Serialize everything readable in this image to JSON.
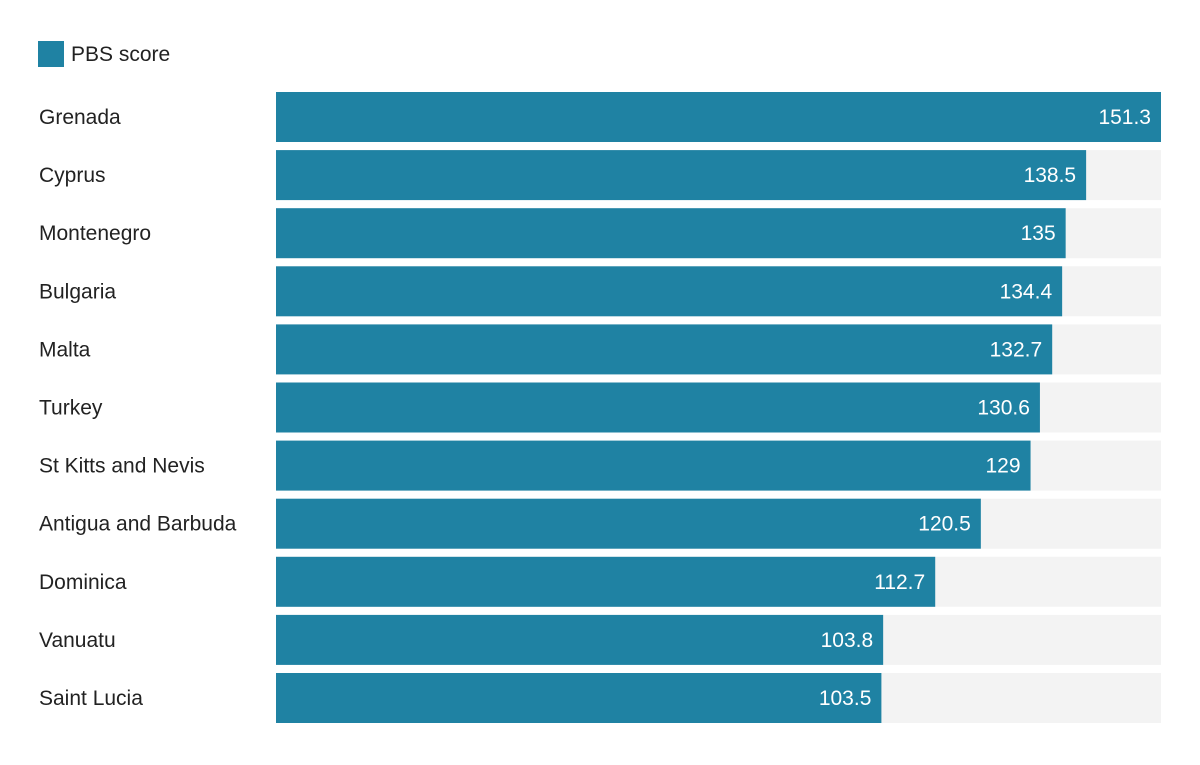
{
  "chart_data": {
    "type": "bar",
    "orientation": "horizontal",
    "categories": [
      "Grenada",
      "Cyprus",
      "Montenegro",
      "Bulgaria",
      "Malta",
      "Turkey",
      "St Kitts and Nevis",
      "Antigua and Barbuda",
      "Dominica",
      "Vanuatu",
      "Saint Lucia"
    ],
    "series": [
      {
        "name": "PBS score",
        "color": "#1f82a3",
        "values": [
          151.3,
          138.5,
          135,
          134.4,
          132.7,
          130.6,
          129,
          120.5,
          112.7,
          103.8,
          103.5
        ]
      }
    ],
    "value_labels": [
      "151.3",
      "138.5",
      "135",
      "134.4",
      "132.7",
      "130.6",
      "129",
      "120.5",
      "112.7",
      "103.8",
      "103.5"
    ],
    "xlim": [
      0,
      151.3
    ],
    "track_color": "#f3f3f3",
    "grid": false,
    "legend_position": "top-left"
  }
}
